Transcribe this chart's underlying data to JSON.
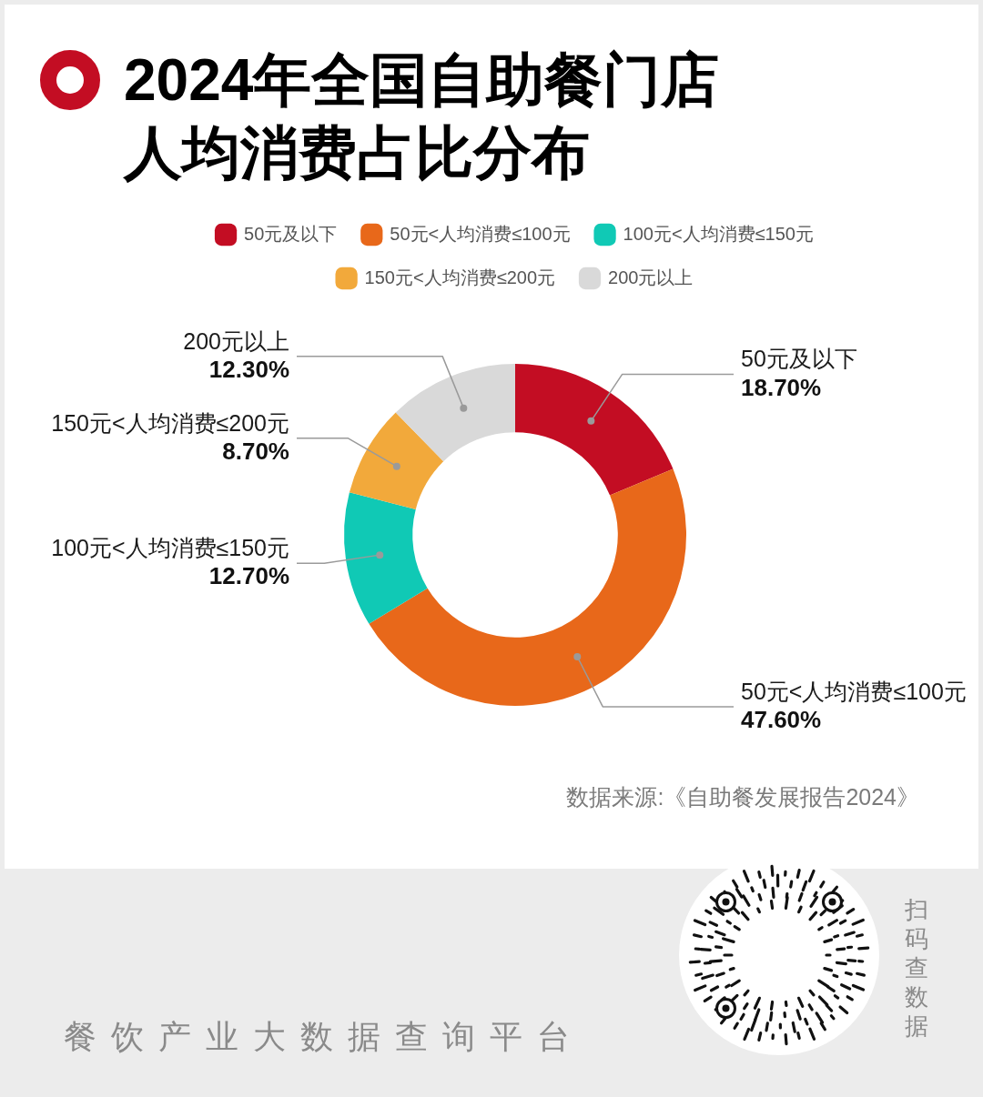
{
  "chart_data": {
    "type": "donut",
    "title": "2024年全国自助餐门店人均消费占比分布",
    "categories": [
      "50元及以下",
      "50元<人均消费≤100元",
      "100元<人均消费≤150元",
      "150元<人均消费≤200元",
      "200元以上"
    ],
    "values": [
      18.7,
      47.6,
      12.7,
      8.7,
      12.3
    ],
    "value_labels": [
      "18.70%",
      "47.60%",
      "12.70%",
      "8.70%",
      "12.30%"
    ],
    "colors": [
      "#c30d23",
      "#e8681a",
      "#10c9b5",
      "#f2a93b",
      "#d9d9d9"
    ],
    "legend": "top",
    "annotations": [
      "数据来源:《自助餐发展报告2024》",
      "餐饮产业大数据查询平台",
      "扫码查数据"
    ]
  }
}
